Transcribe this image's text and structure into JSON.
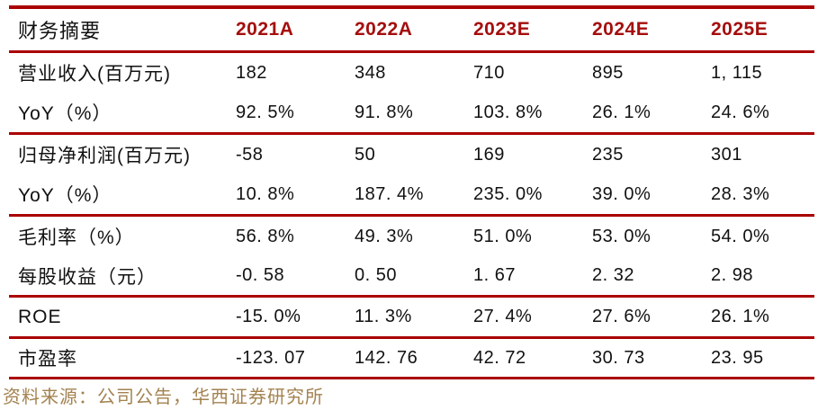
{
  "colors": {
    "rule-red": "#AA0000",
    "header-red": "#A50E0E",
    "text-black": "#111111",
    "source-brown": "#A3824F"
  },
  "table": {
    "title": "财务摘要",
    "columns": [
      "2021A",
      "2022A",
      "2023E",
      "2024E",
      "2025E"
    ],
    "sections": [
      {
        "rows": [
          {
            "label": "营业收入(百万元)",
            "values": [
              "182",
              "348",
              "710",
              "895",
              "1, 115"
            ]
          },
          {
            "label": "YoY（%）",
            "values": [
              "92. 5%",
              "91. 8%",
              "103. 8%",
              "26. 1%",
              "24. 6%"
            ]
          }
        ]
      },
      {
        "rows": [
          {
            "label": "归母净利润(百万元)",
            "values": [
              "-58",
              "50",
              "169",
              "235",
              "301"
            ]
          },
          {
            "label": "YoY（%）",
            "values": [
              "10. 8%",
              "187. 4%",
              "235. 0%",
              "39. 0%",
              "28. 3%"
            ]
          }
        ]
      },
      {
        "rows": [
          {
            "label": "毛利率（%）",
            "values": [
              "56. 8%",
              "49. 3%",
              "51. 0%",
              "53. 0%",
              "54. 0%"
            ]
          },
          {
            "label": "每股收益（元）",
            "values": [
              "-0. 58",
              "0. 50",
              "1. 67",
              "2. 32",
              "2. 98"
            ]
          }
        ]
      },
      {
        "rows": [
          {
            "label": "ROE",
            "values": [
              "-15. 0%",
              "11. 3%",
              "27. 4%",
              "27. 6%",
              "26. 1%"
            ]
          }
        ]
      },
      {
        "rows": [
          {
            "label": "市盈率",
            "values": [
              "-123. 07",
              "142. 76",
              "42. 72",
              "30. 73",
              "23. 95"
            ]
          }
        ]
      }
    ]
  },
  "footer": {
    "source": "资料来源：公司公告，华西证券研究所"
  }
}
